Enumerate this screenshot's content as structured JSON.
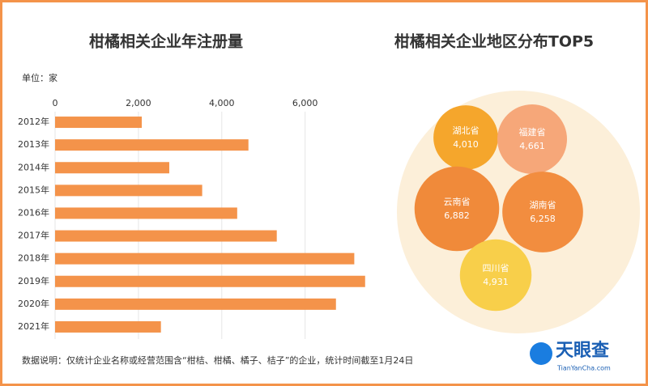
{
  "chart_data": [
    {
      "type": "bar",
      "orientation": "horizontal",
      "title": "柑橘相关企业年注册量",
      "subtitle": "单位：家",
      "categories": [
        "2012年",
        "2013年",
        "2014年",
        "2015年",
        "2016年",
        "2017年",
        "2018年",
        "2019年",
        "2020年",
        "2021年"
      ],
      "values": [
        2080,
        4640,
        2740,
        3530,
        4370,
        5320,
        7180,
        7440,
        6740,
        2540
      ],
      "color": "#f4934a",
      "xlim": [
        0,
        7600
      ],
      "xticks": [
        0,
        {
          "value": 2000,
          "label": "2,000"
        },
        {
          "value": 4000,
          "label": "4,000"
        },
        {
          "value": 6000,
          "label": "6,000"
        }
      ],
      "grid": true
    },
    {
      "type": "bubble",
      "title": "柑橘相关企业地区分布TOP5",
      "categories": [
        "湖北省",
        "福建省",
        "云南省",
        "湖南省",
        "四川省"
      ],
      "values": [
        4010,
        4661,
        6882,
        6258,
        4931
      ],
      "value_labels": [
        "4,010",
        "4,661",
        "6,882",
        "6,258",
        "4,931"
      ],
      "colors": [
        "#f5a62c",
        "#f6a779",
        "#f08a3a",
        "#f28d3f",
        "#f8cf4a"
      ]
    }
  ],
  "note": "数据说明：仅统计企业名称或经营范围含“柑桔、柑橘、橘子、桔子”的企业，统计时间截至1月24日",
  "brand": {
    "name": "天眼查",
    "url": "TianYanCha.com"
  }
}
